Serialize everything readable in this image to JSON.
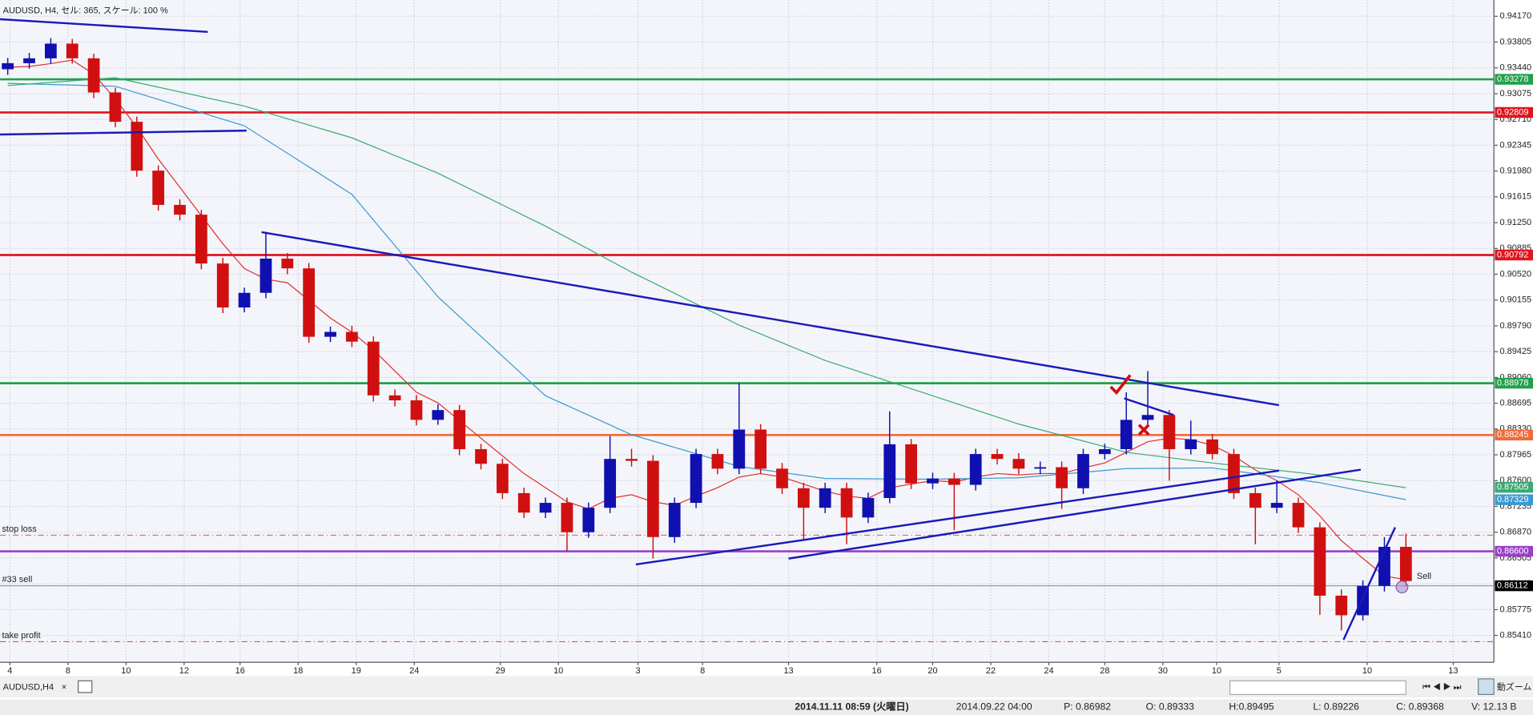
{
  "chart_data": {
    "type": "candlestick",
    "title": "AUDUSD, H4, セル: 365, スケール: 100 %",
    "up_color": "#1010b0",
    "down_color": "#d01010",
    "grid": true,
    "xlim": [
      -0.36,
      69.09
    ],
    "ylim": [
      0.8503,
      0.944
    ],
    "xticks": [
      {
        "value": 0.1,
        "label": "4"
      },
      {
        "value": 2.8,
        "label": "8"
      },
      {
        "value": 5.5,
        "label": "10"
      },
      {
        "value": 8.2,
        "label": "12"
      },
      {
        "value": 10.8,
        "label": "16"
      },
      {
        "value": 13.5,
        "label": "18"
      },
      {
        "value": 16.2,
        "label": "19"
      },
      {
        "value": 18.9,
        "label": "24"
      },
      {
        "value": 22.9,
        "label": "29"
      },
      {
        "value": 25.6,
        "label": "10"
      },
      {
        "value": 29.3,
        "label": "3"
      },
      {
        "value": 32.3,
        "label": "8"
      },
      {
        "value": 36.3,
        "label": "13"
      },
      {
        "value": 40.4,
        "label": "16"
      },
      {
        "value": 43.0,
        "label": "20"
      },
      {
        "value": 45.7,
        "label": "22"
      },
      {
        "value": 48.4,
        "label": "24"
      },
      {
        "value": 51.0,
        "label": "28"
      },
      {
        "value": 53.7,
        "label": "30"
      },
      {
        "value": 56.2,
        "label": "10"
      },
      {
        "value": 59.1,
        "label": "5"
      },
      {
        "value": 63.2,
        "label": "10"
      },
      {
        "value": 67.2,
        "label": "13"
      }
    ],
    "yticks": [
      {
        "value": 0.9417,
        "label": "0.94170"
      },
      0.93805,
      {
        "value": 0.9344,
        "label": "0.93440"
      },
      0.93075,
      {
        "value": 0.9271,
        "label": "0.92710"
      },
      0.92345,
      {
        "value": 0.9198,
        "label": "0.91980"
      },
      0.91615,
      {
        "value": 0.9125,
        "label": "0.91250"
      },
      0.90885,
      {
        "value": 0.9052,
        "label": "0.90520"
      },
      0.90155,
      {
        "value": 0.8979,
        "label": "0.89790"
      },
      0.89425,
      {
        "value": 0.8906,
        "label": "0.89060"
      },
      0.88695,
      {
        "value": 0.8833,
        "label": "0.88330"
      },
      0.87965,
      {
        "value": 0.876,
        "label": "0.87600"
      },
      0.87235,
      {
        "value": 0.8687,
        "label": "0.86870"
      },
      0.86505,
      {
        "value": 0.8614,
        "label": "0.86140"
      },
      0.85775,
      {
        "value": 0.8541,
        "label": "0.85410"
      }
    ],
    "open": [
      0.9342,
      0.93506,
      0.93575,
      0.93783,
      0.93575,
      0.93092,
      0.92677,
      0.91986,
      0.91501,
      0.91363,
      0.90672,
      0.9005,
      0.90257,
      0.90741,
      0.90603,
      0.89635,
      0.89704,
      0.89566,
      0.88806,
      0.88736,
      0.8846,
      0.88598,
      0.88045,
      0.87838,
      0.87423,
      0.87147,
      0.87285,
      0.8687,
      0.87216,
      0.87907,
      0.8788,
      0.86801,
      0.87285,
      0.87976,
      0.87769,
      0.88322,
      0.87769,
      0.87492,
      0.87216,
      0.87492,
      0.87078,
      0.87354,
      0.88114,
      0.87561,
      0.8763,
      0.8754,
      0.87976,
      0.87907,
      0.87769,
      0.8779,
      0.87492,
      0.87976,
      0.88045,
      0.8846,
      0.88529,
      0.88045,
      0.88183,
      0.87976,
      0.87423,
      0.87216,
      0.87285,
      0.86939,
      0.85972,
      0.85695,
      0.8611,
      0.86663
    ],
    "high": [
      0.9358,
      0.9365,
      0.9386,
      0.9385,
      0.9364,
      0.9316,
      0.9275,
      0.9206,
      0.9158,
      0.9143,
      0.9075,
      0.9033,
      0.9112,
      0.9082,
      0.9068,
      0.8978,
      0.8979,
      0.8964,
      0.8889,
      0.8881,
      0.8868,
      0.8867,
      0.8812,
      0.8791,
      0.875,
      0.8736,
      0.8736,
      0.8729,
      0.8823,
      0.8805,
      0.8796,
      0.8736,
      0.8805,
      0.8805,
      0.8898,
      0.884,
      0.8785,
      0.8757,
      0.8757,
      0.8757,
      0.8743,
      0.8858,
      0.8819,
      0.8771,
      0.8771,
      0.8805,
      0.8805,
      0.8799,
      0.8787,
      0.8787,
      0.8805,
      0.8812,
      0.8885,
      0.8915,
      0.886,
      0.8845,
      0.8826,
      0.8805,
      0.875,
      0.876,
      0.8736,
      0.8701,
      0.8606,
      0.8619,
      0.868,
      0.8685
    ],
    "low": [
      0.9334,
      0.9343,
      0.935,
      0.935,
      0.9301,
      0.926,
      0.919,
      0.9142,
      0.9128,
      0.9059,
      0.8997,
      0.8998,
      0.9018,
      0.9052,
      0.8955,
      0.8956,
      0.8949,
      0.8872,
      0.8865,
      0.8838,
      0.8839,
      0.8796,
      0.8776,
      0.8734,
      0.8707,
      0.8707,
      0.866,
      0.8679,
      0.8714,
      0.878,
      0.865,
      0.8672,
      0.8721,
      0.8769,
      0.8769,
      0.8769,
      0.8741,
      0.8675,
      0.8714,
      0.867,
      0.87,
      0.8728,
      0.8748,
      0.8748,
      0.869,
      0.8746,
      0.8783,
      0.8769,
      0.8769,
      0.872,
      0.8741,
      0.879,
      0.8797,
      0.8838,
      0.876,
      0.8797,
      0.879,
      0.8734,
      0.867,
      0.8714,
      0.8686,
      0.857,
      0.8548,
      0.8562,
      0.8603,
      0.861
    ],
    "close": [
      0.93506,
      0.93575,
      0.93783,
      0.93575,
      0.93092,
      0.92677,
      0.91986,
      0.91501,
      0.91363,
      0.90672,
      0.9005,
      0.90257,
      0.90741,
      0.90603,
      0.89635,
      0.89704,
      0.89566,
      0.88806,
      0.88736,
      0.8846,
      0.88598,
      0.88045,
      0.87838,
      0.87423,
      0.87147,
      0.87285,
      0.8687,
      0.87216,
      0.87907,
      0.8788,
      0.86801,
      0.87285,
      0.87976,
      0.87769,
      0.88322,
      0.87769,
      0.87492,
      0.87216,
      0.87492,
      0.87078,
      0.87354,
      0.88114,
      0.87561,
      0.8763,
      0.8754,
      0.87976,
      0.87907,
      0.87769,
      0.8779,
      0.87492,
      0.87976,
      0.88045,
      0.8846,
      0.88529,
      0.88045,
      0.88183,
      0.87976,
      0.87423,
      0.87216,
      0.87285,
      0.86939,
      0.85972,
      0.85695,
      0.8611,
      0.86663,
      0.86179
    ],
    "moving_averages": [
      {
        "color": "#e03030",
        "values": [
          0.9345,
          0.9346,
          0.935,
          0.9355,
          0.9335,
          0.93,
          0.926,
          0.9215,
          0.9175,
          0.9135,
          0.9095,
          0.906,
          0.9045,
          0.904,
          0.9015,
          0.899,
          0.897,
          0.8945,
          0.8915,
          0.8885,
          0.887,
          0.8845,
          0.882,
          0.8795,
          0.877,
          0.875,
          0.873,
          0.872,
          0.8735,
          0.874,
          0.873,
          0.8725,
          0.8738,
          0.875,
          0.8765,
          0.877,
          0.8765,
          0.8755,
          0.8745,
          0.8738,
          0.8735,
          0.875,
          0.8755,
          0.876,
          0.8758,
          0.8765,
          0.877,
          0.8768,
          0.877,
          0.877,
          0.8778,
          0.8785,
          0.88,
          0.8815,
          0.882,
          0.8818,
          0.881,
          0.8795,
          0.8775,
          0.876,
          0.874,
          0.871,
          0.8675,
          0.865,
          0.8625,
          0.862
        ]
      },
      {
        "color": "#3a9ad0",
        "tag": 0.87329,
        "x": [
          0,
          5,
          11,
          16,
          20,
          25,
          29,
          34,
          38,
          43,
          47,
          52,
          56,
          61,
          65
        ],
        "values": [
          0.9322,
          0.9318,
          0.9262,
          0.9165,
          0.902,
          0.888,
          0.8825,
          0.878,
          0.8763,
          0.8762,
          0.8764,
          0.8777,
          0.8778,
          0.8757,
          0.8733
        ]
      },
      {
        "color": "#3aaa70",
        "tag": 0.87505,
        "x": [
          0,
          5,
          11,
          16,
          20,
          25,
          29,
          34,
          38,
          43,
          47,
          52,
          56,
          61,
          65
        ],
        "values": [
          0.9319,
          0.933,
          0.929,
          0.9245,
          0.9195,
          0.912,
          0.9055,
          0.898,
          0.893,
          0.888,
          0.884,
          0.88,
          0.8785,
          0.8768,
          0.875
        ]
      }
    ],
    "levels": [
      {
        "value": 0.93278,
        "color": "#22a04a"
      },
      {
        "value": 0.92809,
        "color": "#e0141e"
      },
      {
        "value": 0.90792,
        "color": "#e0141e"
      },
      {
        "value": 0.88978,
        "color": "#22a04a"
      },
      {
        "value": 0.88245,
        "color": "#f06a3a"
      },
      {
        "value": 0.866,
        "label": "0.86600",
        "color": "#9b3fc8"
      }
    ],
    "orders": [
      {
        "label": "stop loss",
        "value": 0.86829,
        "dashed": true
      },
      {
        "label": "#33 sell",
        "value": 0.86112,
        "price_tag": true
      },
      {
        "label": "take profit",
        "value": 0.85322,
        "dashed": true
      }
    ],
    "trendlines": [
      {
        "x": [
          -0.36,
          9.3
        ],
        "y": [
          0.94128,
          0.93949
        ]
      },
      {
        "x": [
          -0.36,
          11.1
        ],
        "y": [
          0.92497,
          0.92552
        ]
      },
      {
        "x": [
          11.8,
          59.1
        ],
        "y": [
          0.91115,
          0.88667
        ]
      },
      {
        "x": [
          29.2,
          59.1
        ],
        "y": [
          0.86414,
          0.87741
        ]
      },
      {
        "x": [
          36.3,
          62.9
        ],
        "y": [
          0.86497,
          0.87755
        ]
      },
      {
        "x": [
          51.9,
          54.2
        ],
        "y": [
          0.88764,
          0.88529
        ]
      },
      {
        "x": [
          62.1,
          64.5
        ],
        "y": [
          0.85349,
          0.86939
        ]
      }
    ],
    "markers": [
      {
        "text": "Sell",
        "x": 65.5,
        "y": 0.8624
      }
    ]
  },
  "ui": {
    "tab": "AUDUSD,H4",
    "close": "×",
    "zoom": "動ズーム",
    "status": [
      "2014.11.11 08:59 (火曜日)",
      "2014.09.22 04:00",
      "P: 0.86982",
      "O: 0.89333",
      "H:0.89495",
      "L: 0.89226",
      "C: 0.89368",
      "V: 12.13 B"
    ]
  }
}
